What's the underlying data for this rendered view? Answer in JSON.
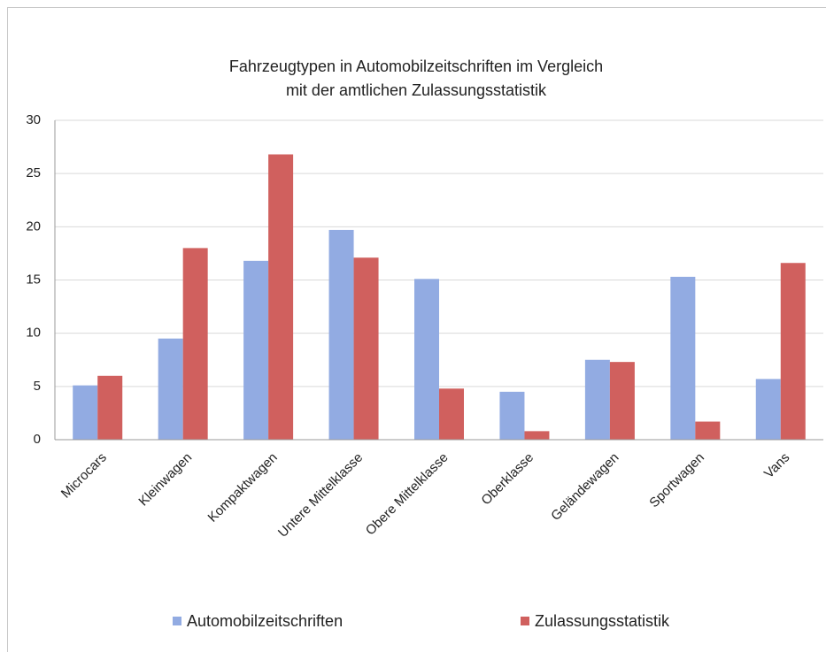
{
  "chart_data": {
    "type": "bar",
    "title": [
      "Fahrzeugtypen in Automobilzeitschriften im Vergleich",
      "mit der amtlichen Zulassungsstatistik"
    ],
    "categories": [
      "Microcars",
      "Kleinwagen",
      "Kompaktwagen",
      "Untere Mittelklasse",
      "Obere Mittelklasse",
      "Oberklasse",
      "Geländewagen",
      "Sportwagen",
      "Vans"
    ],
    "series": [
      {
        "name": "Automobilzeitschriften",
        "color": "#92abe2",
        "values": [
          5.1,
          9.5,
          16.8,
          19.7,
          15.1,
          4.5,
          7.5,
          15.3,
          5.7
        ]
      },
      {
        "name": "Zulassungsstatistik",
        "color": "#d0605e",
        "values": [
          6.0,
          18.0,
          26.8,
          17.1,
          4.8,
          0.8,
          7.3,
          1.7,
          16.6
        ]
      }
    ],
    "ylim": [
      0,
      30
    ],
    "yticks": [
      0,
      5,
      10,
      15,
      20,
      25,
      30
    ],
    "grid": true,
    "legend": "bottom"
  }
}
